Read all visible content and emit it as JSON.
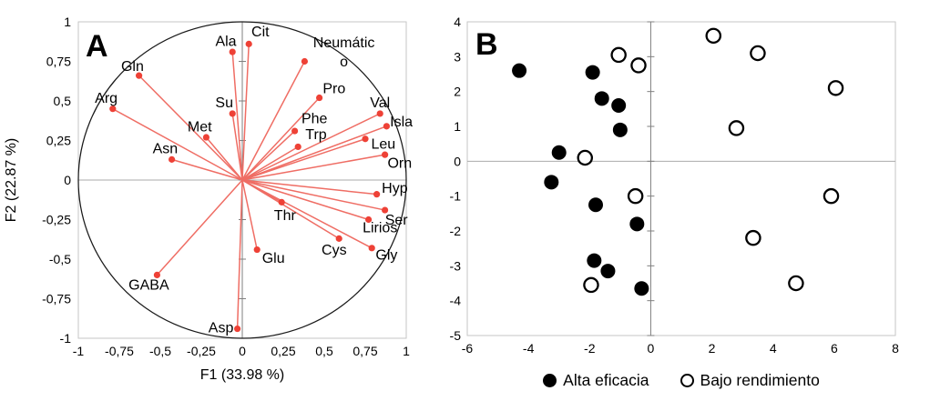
{
  "colors": {
    "vector_line": "#ef6d64",
    "vector_dot": "#ee4136",
    "axis_dark": "#7f7f7f",
    "axis_light": "#ababab",
    "box_border": "#c6c6c6",
    "circle": "#1a1a1a",
    "marker_black": "#000000",
    "marker_open_fill": "#ffffff"
  },
  "chart_data": [
    {
      "type": "scatter",
      "subtype": "pca-correlation-circle",
      "panel_label": "A",
      "xlabel": "F1 (33.98 %)",
      "ylabel": "F2 (22.87 %)",
      "xlim": [
        -1,
        1
      ],
      "ylim": [
        -1,
        1
      ],
      "x_tick_values": [
        -1,
        -0.75,
        -0.5,
        -0.25,
        0,
        0.25,
        0.5,
        0.75,
        1
      ],
      "x_tick_labels": [
        "-1",
        "-0,75",
        "-0,5",
        "-0,25",
        "0",
        "0,25",
        "0,5",
        "0,75",
        "1"
      ],
      "y_tick_values": [
        1,
        0.75,
        0.5,
        0.25,
        0,
        -0.25,
        -0.5,
        -0.75,
        -1
      ],
      "y_tick_labels": [
        "1",
        "0,75",
        "0,5",
        "0,25",
        "0",
        "-0,25",
        "-0,5",
        "-0,75",
        "-1"
      ],
      "unit_circle": true,
      "vectors": [
        {
          "name": "Cit",
          "x": 0.04,
          "y": 0.86,
          "lx": 0.11,
          "ly": 0.94
        },
        {
          "name": "Ala",
          "x": -0.06,
          "y": 0.81,
          "lx": -0.1,
          "ly": 0.88
        },
        {
          "name": "Neumático",
          "x": 0.38,
          "y": 0.75,
          "lx": 0.62,
          "ly": 0.87,
          "label_lines": [
            "Neumátic",
            "o"
          ]
        },
        {
          "name": "Gln",
          "x": -0.63,
          "y": 0.66,
          "lx": -0.67,
          "ly": 0.72
        },
        {
          "name": "Pro",
          "x": 0.47,
          "y": 0.52,
          "lx": 0.56,
          "ly": 0.58
        },
        {
          "name": "Arg",
          "x": -0.79,
          "y": 0.45,
          "lx": -0.83,
          "ly": 0.52
        },
        {
          "name": "Su",
          "x": -0.06,
          "y": 0.42,
          "lx": -0.11,
          "ly": 0.49
        },
        {
          "name": "Val",
          "x": 0.84,
          "y": 0.42,
          "lx": 0.84,
          "ly": 0.49
        },
        {
          "name": "Isla",
          "x": 0.88,
          "y": 0.34,
          "lx": 0.97,
          "ly": 0.37
        },
        {
          "name": "Phe",
          "x": 0.32,
          "y": 0.31,
          "lx": 0.44,
          "ly": 0.39
        },
        {
          "name": "Met",
          "x": -0.22,
          "y": 0.27,
          "lx": -0.26,
          "ly": 0.34
        },
        {
          "name": "Leu",
          "x": 0.75,
          "y": 0.26,
          "lx": 0.86,
          "ly": 0.23
        },
        {
          "name": "Trp",
          "x": 0.34,
          "y": 0.21,
          "lx": 0.45,
          "ly": 0.29
        },
        {
          "name": "Orn",
          "x": 0.87,
          "y": 0.16,
          "lx": 0.96,
          "ly": 0.11
        },
        {
          "name": "Asn",
          "x": -0.43,
          "y": 0.13,
          "lx": -0.47,
          "ly": 0.2
        },
        {
          "name": "Hyp",
          "x": 0.82,
          "y": -0.09,
          "lx": 0.93,
          "ly": -0.05
        },
        {
          "name": "Thr",
          "x": 0.24,
          "y": -0.14,
          "lx": 0.26,
          "ly": -0.22
        },
        {
          "name": "Ser",
          "x": 0.87,
          "y": -0.19,
          "lx": 0.94,
          "ly": -0.25
        },
        {
          "name": "Lirios",
          "x": 0.77,
          "y": -0.25,
          "lx": 0.84,
          "ly": -0.3
        },
        {
          "name": "Cys",
          "x": 0.59,
          "y": -0.37,
          "lx": 0.56,
          "ly": -0.44
        },
        {
          "name": "Gly",
          "x": 0.79,
          "y": -0.43,
          "lx": 0.88,
          "ly": -0.47
        },
        {
          "name": "Glu",
          "x": 0.09,
          "y": -0.44,
          "lx": 0.19,
          "ly": -0.49
        },
        {
          "name": "GABA",
          "x": -0.52,
          "y": -0.6,
          "lx": -0.57,
          "ly": -0.66
        },
        {
          "name": "Asp",
          "x": -0.03,
          "y": -0.94,
          "lx": -0.13,
          "ly": -0.93
        }
      ]
    },
    {
      "type": "scatter",
      "panel_label": "B",
      "xlabel": "",
      "ylabel": "",
      "xlim": [
        -6,
        8
      ],
      "ylim": [
        -5,
        4
      ],
      "x_tick_values": [
        -6,
        -4,
        -2,
        0,
        2,
        4,
        6,
        8
      ],
      "x_tick_labels": [
        "-6",
        "-4",
        "-2",
        "0",
        "2",
        "4",
        "6",
        "8"
      ],
      "y_tick_values": [
        4,
        3,
        2,
        1,
        0,
        -1,
        -2,
        -3,
        -4,
        -5
      ],
      "y_tick_labels": [
        "4",
        "3",
        "2",
        "1",
        "0",
        "-1",
        "-2",
        "-3",
        "-4",
        "-5"
      ],
      "legend_position": "bottom",
      "series": [
        {
          "name": "Alta eficacia",
          "marker": "filled",
          "points": [
            [
              -4.3,
              2.6
            ],
            [
              -1.9,
              2.55
            ],
            [
              -1.6,
              1.8
            ],
            [
              -1.05,
              1.6
            ],
            [
              -1.0,
              0.9
            ],
            [
              -3.0,
              0.25
            ],
            [
              -3.25,
              -0.6
            ],
            [
              -1.8,
              -1.25
            ],
            [
              -0.45,
              -1.8
            ],
            [
              -1.85,
              -2.85
            ],
            [
              -1.4,
              -3.15
            ],
            [
              -0.3,
              -3.65
            ]
          ]
        },
        {
          "name": "Bajo rendimiento",
          "marker": "open",
          "points": [
            [
              2.05,
              3.6
            ],
            [
              3.5,
              3.1
            ],
            [
              -1.05,
              3.05
            ],
            [
              -0.4,
              2.75
            ],
            [
              6.05,
              2.1
            ],
            [
              2.8,
              0.95
            ],
            [
              -2.15,
              0.1
            ],
            [
              -0.5,
              -1.0
            ],
            [
              5.9,
              -1.0
            ],
            [
              3.35,
              -2.2
            ],
            [
              4.75,
              -3.5
            ],
            [
              -1.95,
              -3.55
            ]
          ]
        }
      ]
    }
  ]
}
